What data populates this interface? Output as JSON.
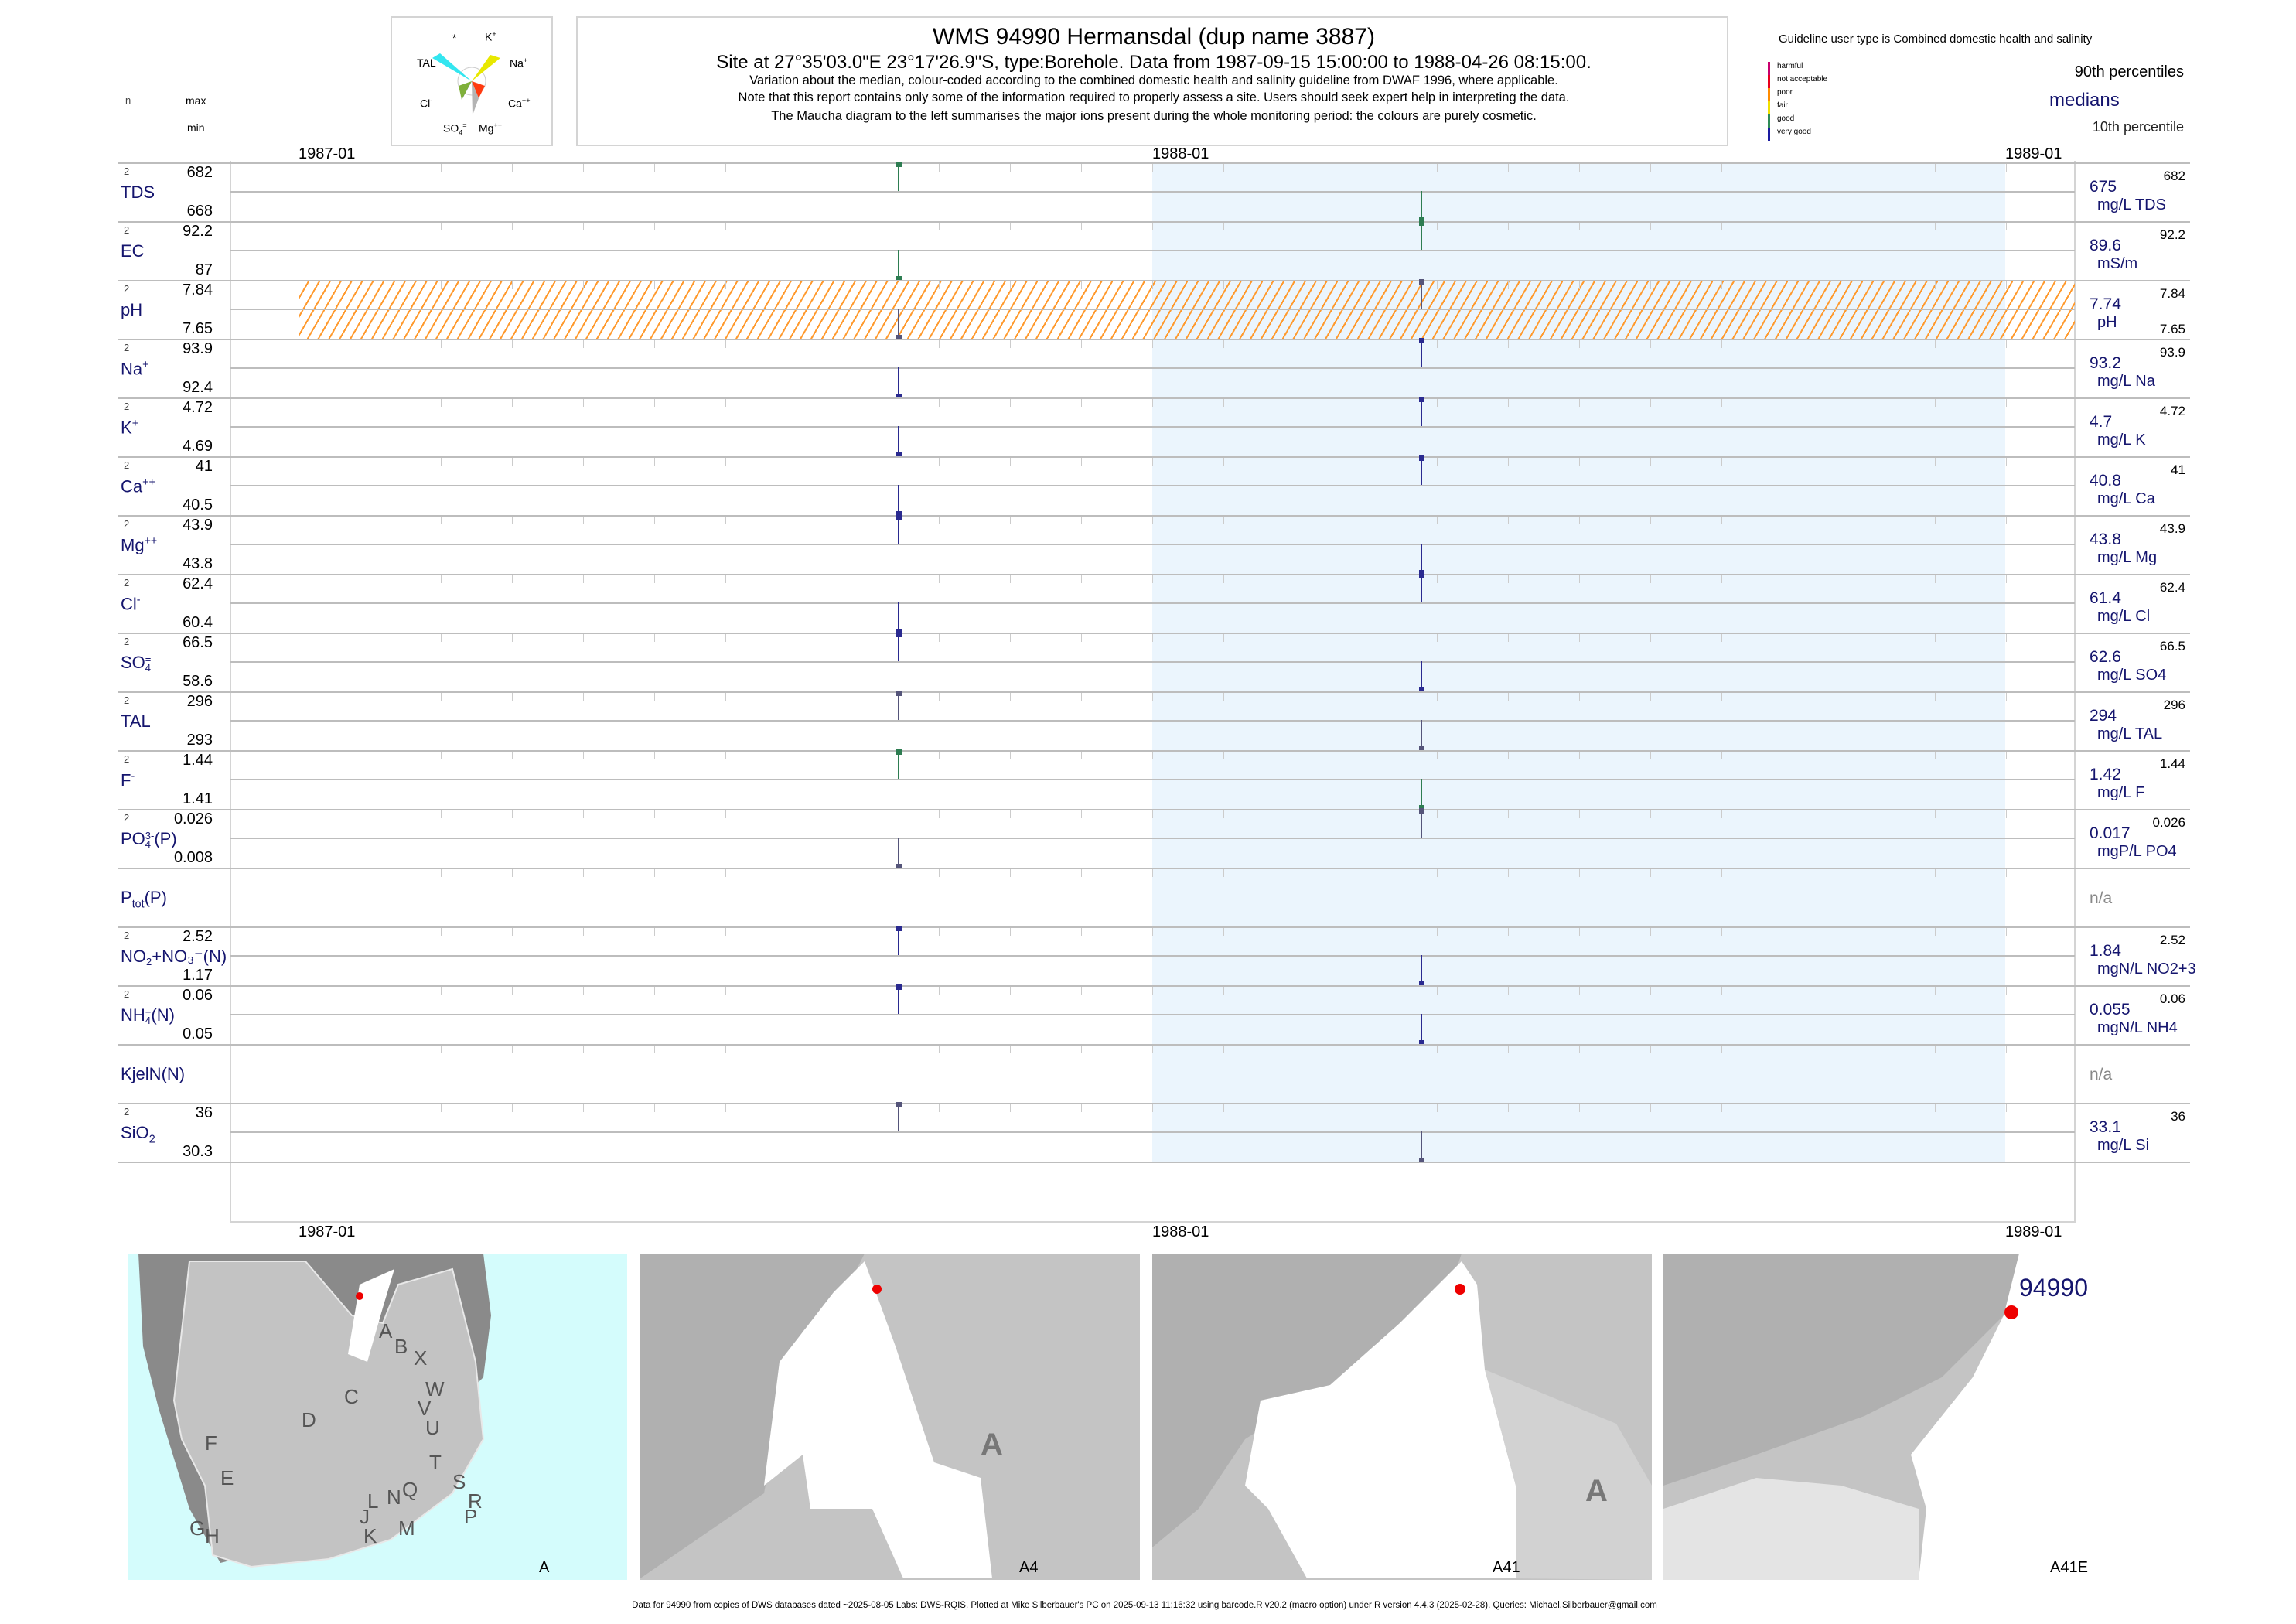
{
  "header": {
    "title": "WMS 94990  Hermansdal (dup name 3887)",
    "subtitle": "Site at 27°35'03.0\"E 23°17'26.9\"S, type:Borehole.  Data from 1987-09-15 15:00:00 to 1988-04-26 08:15:00.",
    "line1": "Variation about the median,  colour-coded according to the combined domestic health and salinity guideline from DWAF 1996, where applicable.",
    "line2": "Note that this report contains only some of the information required to properly assess a site. Users should seek expert help in interpreting the data.",
    "line3": "The Maucha diagram to the left summarises the major ions present during the whole monitoring period: the colours are purely cosmetic."
  },
  "maucha": {
    "star": "*",
    "k": "K",
    "k_sup": "+",
    "tal": "TAL",
    "na": "Na",
    "na_sup": "+",
    "cl": "Cl",
    "cl_sup": "-",
    "ca": "Ca",
    "ca_sup": "++",
    "so4": "SO",
    "so4_sub": "4",
    "so4_sup": "=",
    "mg": "Mg",
    "mg_sup": "++"
  },
  "legend": {
    "guideline": "Guideline user type is Combined domestic health and salinity",
    "classes": [
      {
        "label": "harmful",
        "color": "#c8006e"
      },
      {
        "label": "not acceptable",
        "color": "#e8001c"
      },
      {
        "label": "poor",
        "color": "#ff8c00"
      },
      {
        "label": "fair",
        "color": "#f0e000"
      },
      {
        "label": "good",
        "color": "#2e8b57"
      },
      {
        "label": "very good",
        "color": "#1a1aa0"
      }
    ],
    "p90": "90th percentiles",
    "medians": "medians",
    "p10": "10th percentile"
  },
  "left_header": {
    "n": "n",
    "max": "max",
    "min": "min"
  },
  "chart_data": {
    "type": "table",
    "x_ticks": [
      "1987-01",
      "1988-01",
      "1989-01"
    ],
    "x_range": [
      "1987-01-01",
      "1989-01-01"
    ],
    "sample_dates": [
      "1987-09-15",
      "1988-04-26"
    ],
    "shaded_period": [
      "1988-01-01",
      "1988-12-31"
    ],
    "rows": [
      {
        "name": "TDS",
        "sup": "",
        "sub": "",
        "after": "",
        "n": "2",
        "max": "682",
        "min": "668",
        "median": "675",
        "unit": "mg/L TDS",
        "rmax": "682",
        "rmin": "",
        "s": [
          "hi",
          "lo"
        ],
        "color": "#2e7d52"
      },
      {
        "name": "EC",
        "sup": "",
        "sub": "",
        "after": "",
        "n": "2",
        "max": "92.2",
        "min": "87",
        "median": "89.6",
        "unit": "mS/m",
        "rmax": "92.2",
        "rmin": "",
        "s": [
          "lo",
          "hi"
        ],
        "color": "#2e7d52"
      },
      {
        "name": "pH",
        "sup": "",
        "sub": "",
        "after": "",
        "n": "2",
        "max": "7.84",
        "min": "7.65",
        "median": "7.74",
        "unit": "pH",
        "rmax": "7.84",
        "rmin": "7.65",
        "s": [
          "lo",
          "hi"
        ],
        "color": "#55557a",
        "hatch": true
      },
      {
        "name": "Na",
        "sup": "+",
        "sub": "",
        "after": "",
        "n": "2",
        "max": "93.9",
        "min": "92.4",
        "median": "93.2",
        "unit": "mg/L Na",
        "rmax": "93.9",
        "rmin": "",
        "s": [
          "lo",
          "hi"
        ],
        "color": "#2a2a90"
      },
      {
        "name": "K",
        "sup": "+",
        "sub": "",
        "after": "",
        "n": "2",
        "max": "4.72",
        "min": "4.69",
        "median": "4.7",
        "unit": "mg/L K",
        "rmax": "4.72",
        "rmin": "",
        "s": [
          "lo",
          "hi"
        ],
        "color": "#2a2a90"
      },
      {
        "name": "Ca",
        "sup": "++",
        "sub": "",
        "after": "",
        "n": "2",
        "max": "41",
        "min": "40.5",
        "median": "40.8",
        "unit": "mg/L Ca",
        "rmax": "41",
        "rmin": "",
        "s": [
          "lo",
          "hi"
        ],
        "color": "#2a2a90"
      },
      {
        "name": "Mg",
        "sup": "++",
        "sub": "",
        "after": "",
        "n": "2",
        "max": "43.9",
        "min": "43.8",
        "median": "43.8",
        "unit": "mg/L Mg",
        "rmax": "43.9",
        "rmin": "",
        "s": [
          "hi",
          "lo"
        ],
        "color": "#2a2a90"
      },
      {
        "name": "Cl",
        "sup": "-",
        "sub": "",
        "after": "",
        "n": "2",
        "max": "62.4",
        "min": "60.4",
        "median": "61.4",
        "unit": "mg/L Cl",
        "rmax": "62.4",
        "rmin": "",
        "s": [
          "lo",
          "hi"
        ],
        "color": "#2a2a90"
      },
      {
        "name": "SO",
        "sup": "=",
        "sub": "4",
        "after": "",
        "n": "2",
        "max": "66.5",
        "min": "58.6",
        "median": "62.6",
        "unit": "mg/L SO4",
        "rmax": "66.5",
        "rmin": "",
        "s": [
          "hi",
          "lo"
        ],
        "color": "#2a2a90"
      },
      {
        "name": "TAL",
        "sup": "",
        "sub": "",
        "after": "",
        "n": "2",
        "max": "296",
        "min": "293",
        "median": "294",
        "unit": "mg/L TAL",
        "rmax": "296",
        "rmin": "",
        "s": [
          "hi",
          "lo"
        ],
        "color": "#55557a"
      },
      {
        "name": "F",
        "sup": "-",
        "sub": "",
        "after": "",
        "n": "2",
        "max": "1.44",
        "min": "1.41",
        "median": "1.42",
        "unit": "mg/L F",
        "rmax": "1.44",
        "rmin": "",
        "s": [
          "hi",
          "lo"
        ],
        "color": "#2e7d52"
      },
      {
        "name": "PO",
        "sup": "3-",
        "sub": "4",
        "after": "(P)",
        "n": "2",
        "max": "0.026",
        "min": "0.008",
        "median": "0.017",
        "unit": "mgP/L PO4",
        "rmax": "0.026",
        "rmin": "",
        "s": [
          "lo",
          "hi"
        ],
        "color": "#55557a"
      },
      {
        "name": "P",
        "sup": "",
        "sub": "tot",
        "after": "(P)",
        "n": "",
        "max": "",
        "min": "",
        "median": "n/a",
        "unit": "",
        "rmax": "",
        "rmin": "",
        "s": [
          null,
          null
        ],
        "color": "#888"
      },
      {
        "name": "NO",
        "sup": "-",
        "sub": "2",
        "after": "+NO₃⁻(N)",
        "n": "2",
        "max": "2.52",
        "min": "1.17",
        "median": "1.84",
        "unit": "mgN/L NO2+3",
        "rmax": "2.52",
        "rmin": "",
        "s": [
          "hi",
          "lo"
        ],
        "color": "#2a2a90"
      },
      {
        "name": "NH",
        "sup": "+",
        "sub": "4",
        "after": "(N)",
        "n": "2",
        "max": "0.06",
        "min": "0.05",
        "median": "0.055",
        "unit": "mgN/L NH4",
        "rmax": "0.06",
        "rmin": "",
        "s": [
          "hi",
          "lo"
        ],
        "color": "#2a2a90"
      },
      {
        "name": "KjelN(N)",
        "sup": "",
        "sub": "",
        "after": "",
        "n": "",
        "max": "",
        "min": "",
        "median": "n/a",
        "unit": "",
        "rmax": "",
        "rmin": "",
        "s": [
          null,
          null
        ],
        "color": "#888"
      },
      {
        "name": "SiO",
        "sup": "",
        "sub": "2",
        "after": "",
        "n": "2",
        "max": "36",
        "min": "30.3",
        "median": "33.1",
        "unit": "mg/L Si",
        "rmax": "36",
        "rmin": "",
        "s": [
          "hi",
          "lo"
        ],
        "color": "#55557a"
      }
    ]
  },
  "maps": {
    "m1_label": "A",
    "m2_label": "A4",
    "m3_label": "A41",
    "m4_label": "A41E",
    "site": "94990",
    "region": "A",
    "regions": [
      "A",
      "B",
      "X",
      "C",
      "W",
      "D",
      "V",
      "U",
      "F",
      "T",
      "E",
      "S",
      "Q",
      "N",
      "L",
      "J",
      "R",
      "G",
      "P",
      "H",
      "M",
      "K"
    ]
  },
  "footer": "Data for 94990 from copies of DWS databases dated ~2025-08-05 Labs: DWS-RQIS. Plotted at Mike Silberbauer's PC on 2025-09-13 11:16:32 using barcode.R v20.2 (macro option) under R version 4.4.3 (2025-02-28). Queries: Michael.Silberbauer@gmail.com"
}
